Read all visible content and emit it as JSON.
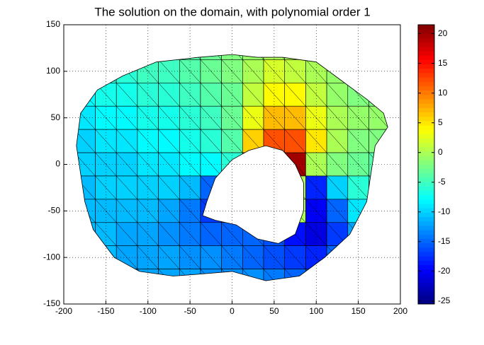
{
  "chart_data": {
    "type": "heatmap",
    "title": "The solution on the domain, with polynomial order 1",
    "xlim": [
      -200,
      200
    ],
    "xticks": [
      -200,
      -150,
      -100,
      -50,
      0,
      50,
      100,
      150,
      200
    ],
    "ylim": [
      -150,
      150
    ],
    "yticks": [
      -150,
      -100,
      -50,
      0,
      50,
      100,
      150
    ],
    "grid": true,
    "colormap": "jet",
    "clim": [
      -25.5,
      21.5
    ],
    "cticks": [
      -25,
      -20,
      -15,
      -10,
      -5,
      0,
      5,
      10,
      15,
      20
    ],
    "boundary": {
      "x": [
        -180,
        -160,
        -130,
        -90,
        -40,
        0,
        30,
        60,
        100,
        130,
        160,
        180,
        185,
        170,
        165,
        160,
        140,
        110,
        80,
        40,
        0,
        -40,
        -70,
        -110,
        -140,
        -165,
        -175,
        -180,
        -185
      ],
      "y": [
        55,
        80,
        95,
        110,
        115,
        118,
        115,
        115,
        110,
        90,
        70,
        55,
        40,
        20,
        -10,
        -40,
        -75,
        -100,
        -120,
        -125,
        -115,
        -118,
        -120,
        -115,
        -100,
        -70,
        -40,
        -10,
        20
      ]
    },
    "hole": {
      "x": [
        -30,
        -20,
        0,
        20,
        40,
        60,
        75,
        85,
        85,
        75,
        55,
        30,
        5,
        -20,
        -35
      ],
      "y": [
        -40,
        -15,
        5,
        15,
        20,
        15,
        0,
        -20,
        -50,
        -75,
        -85,
        -80,
        -65,
        -60,
        -55
      ]
    },
    "x": [
      -175,
      -150,
      -125,
      -100,
      -75,
      -50,
      -25,
      0,
      25,
      50,
      75,
      100,
      125,
      150,
      175
    ],
    "y": [
      125,
      100,
      75,
      50,
      25,
      0,
      -25,
      -50,
      -75,
      -100,
      -125
    ],
    "values": [
      [
        -6,
        -6,
        -5,
        -5,
        -4,
        -4,
        -3,
        -2,
        -1,
        0,
        0,
        -1,
        -1,
        -2,
        -2
      ],
      [
        -7,
        -6,
        -6,
        -5,
        -5,
        -4,
        -3,
        -2,
        0,
        2,
        1,
        0,
        -1,
        -1,
        -2
      ],
      [
        -8,
        -7,
        -7,
        -6,
        -6,
        -5,
        -4,
        -3,
        1,
        4,
        4,
        1,
        -1,
        -2,
        -2
      ],
      [
        -9,
        -8,
        -8,
        -7,
        -7,
        -6,
        -5,
        -3,
        3,
        7,
        7,
        3,
        0,
        -1,
        -1
      ],
      [
        -10,
        -9,
        -9,
        -8,
        -8,
        -7,
        -6,
        -4,
        6,
        12,
        12,
        5,
        0,
        -2,
        -2
      ],
      [
        -10,
        -10,
        -10,
        -9,
        -9,
        -8,
        -8,
        -6,
        10,
        17,
        20,
        0,
        -2,
        -3,
        -4
      ],
      [
        -11,
        -10,
        -10,
        -10,
        -10,
        -11,
        -15,
        -10,
        0,
        0,
        0,
        -18,
        -10,
        -6,
        -6
      ],
      [
        -11,
        -11,
        -11,
        -11,
        -12,
        -14,
        -17,
        -14,
        0,
        0,
        0,
        -20,
        -15,
        -9,
        -8
      ],
      [
        -11,
        -11,
        -12,
        -12,
        -13,
        -14,
        -15,
        -15,
        -15,
        -16,
        -19,
        -21,
        -17,
        -12,
        -10
      ],
      [
        -11,
        -11,
        -12,
        -12,
        -12,
        -13,
        -13,
        -14,
        -15,
        -16,
        -17,
        -18,
        -15,
        -12,
        -10
      ],
      [
        -11,
        -11,
        -11,
        -12,
        -12,
        -12,
        -13,
        -13,
        -13,
        -14,
        -15,
        -15,
        -13,
        -11,
        -10
      ]
    ]
  }
}
